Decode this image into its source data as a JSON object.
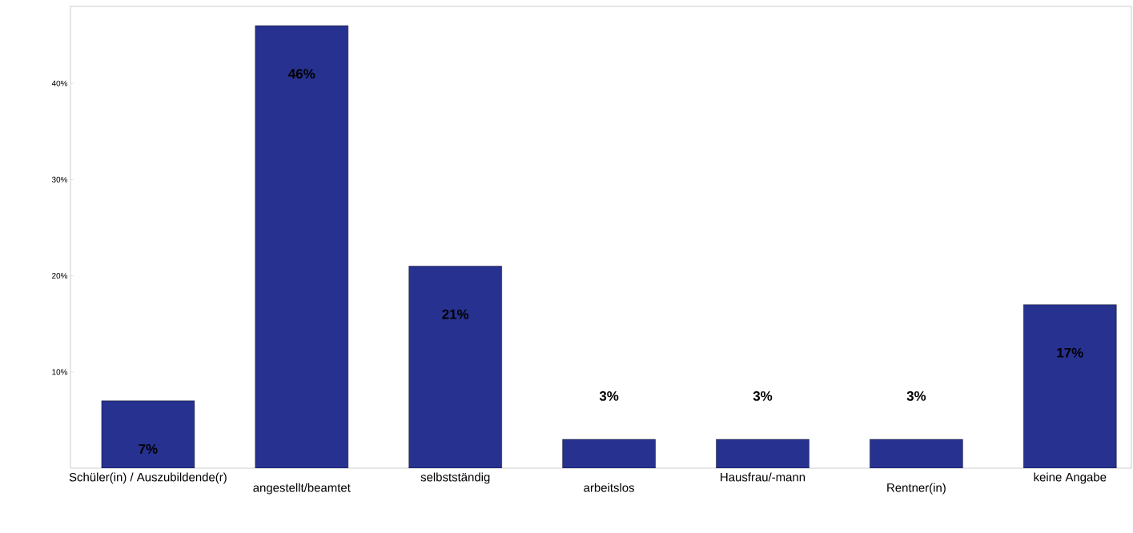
{
  "chart_data": {
    "type": "bar",
    "categories": [
      "Schüler(in) / Auszubildende(r)",
      "angestellt/beamtet",
      "selbstständig",
      "arbeitslos",
      "Hausfrau/-mann",
      "Rentner(in)",
      "keine Angabe"
    ],
    "values": [
      7,
      46,
      21,
      3,
      3,
      3,
      17
    ],
    "value_labels": [
      "7%",
      "46%",
      "21%",
      "3%",
      "3%",
      "3%",
      "17%"
    ],
    "color": "#27318f",
    "ylim": [
      0,
      48
    ],
    "yticks": [
      {
        "value": 10,
        "label": "10%"
      },
      {
        "value": 20,
        "label": "20%"
      },
      {
        "value": 30,
        "label": "30%"
      },
      {
        "value": 40,
        "label": "40%"
      }
    ],
    "grid": false
  }
}
